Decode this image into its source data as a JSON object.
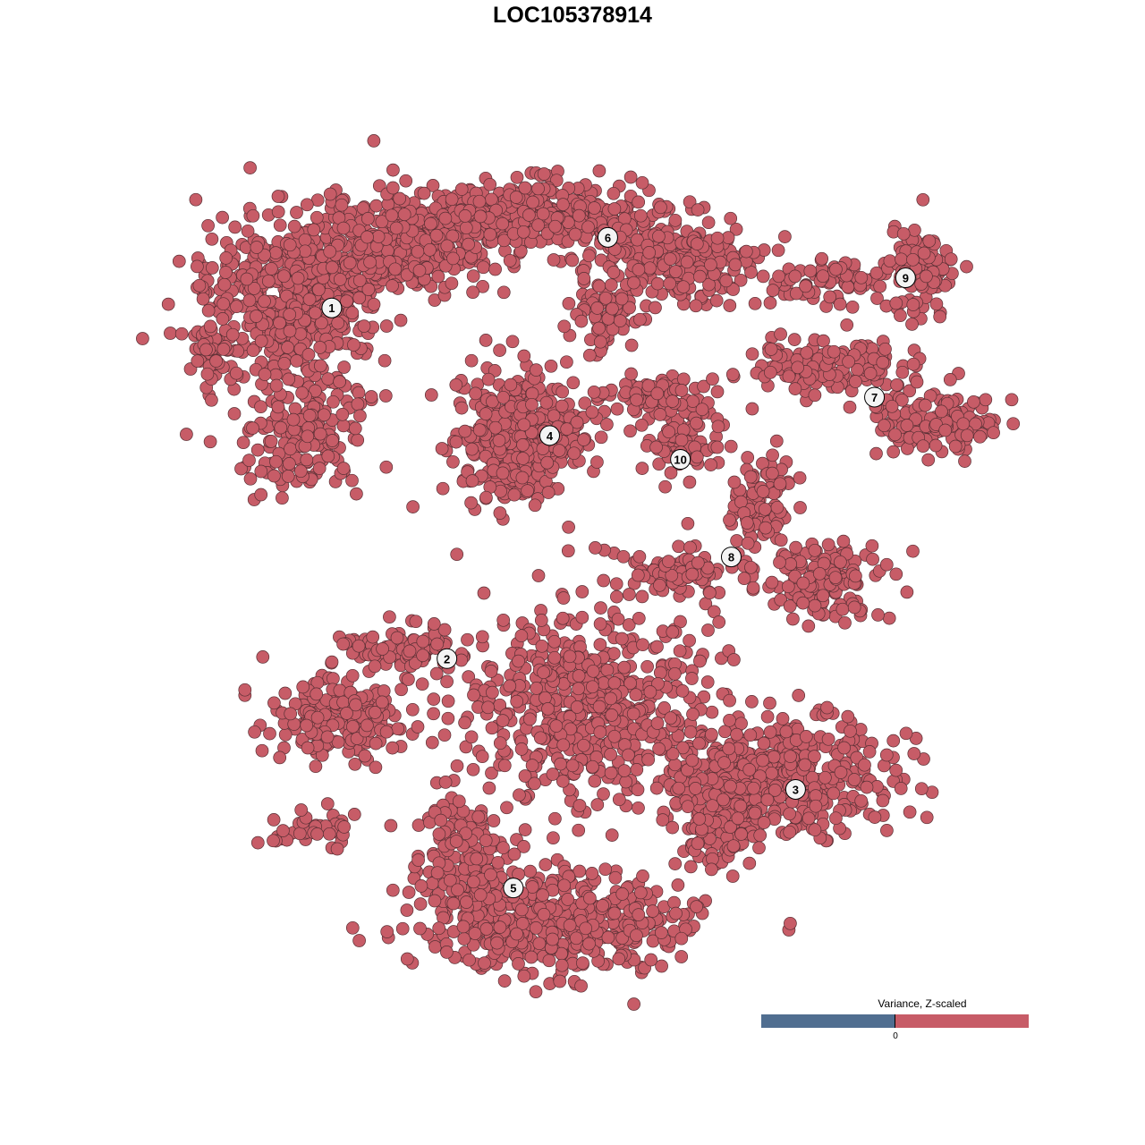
{
  "chart_data": {
    "type": "scatter",
    "title": "LOC105378914",
    "xlabel": "",
    "ylabel": "",
    "axes_visible": false,
    "grid": false,
    "point_color": "#c75c67",
    "point_stroke": "#5a3035",
    "clusters": [
      {
        "label": "1",
        "x": -23.2,
        "y": 25.5
      },
      {
        "label": "2",
        "x": -12.1,
        "y": -8.3
      },
      {
        "label": "3",
        "x": 21.5,
        "y": -20.9
      },
      {
        "label": "4",
        "x": -2.2,
        "y": 13.2
      },
      {
        "label": "5",
        "x": -5.7,
        "y": -30.4
      },
      {
        "label": "6",
        "x": 3.4,
        "y": 32.3
      },
      {
        "label": "7",
        "x": 29.1,
        "y": 16.9
      },
      {
        "label": "8",
        "x": 15.3,
        "y": 1.5
      },
      {
        "label": "9",
        "x": 32.1,
        "y": 28.4
      },
      {
        "label": "10",
        "x": 10.4,
        "y": 10.9
      }
    ],
    "legend": {
      "title": "Variance, Z-scaled",
      "tick_label": "0",
      "low_color": "#506e90",
      "high_color": "#c75c67",
      "placement": "bottom-right"
    }
  }
}
